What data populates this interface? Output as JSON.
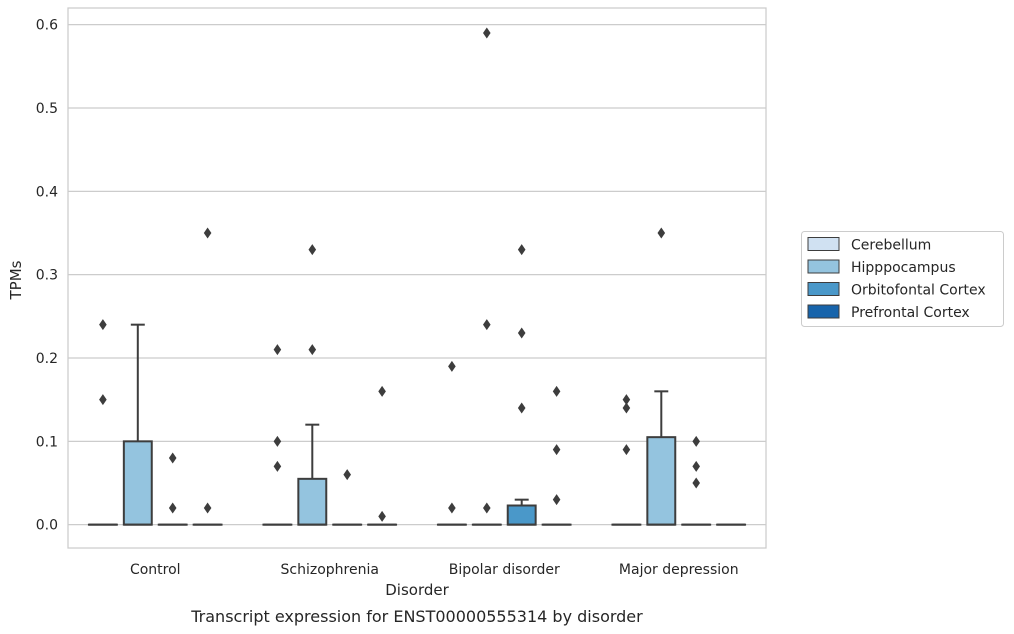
{
  "caption": "Transcript expression for ENST00000555314 by disorder",
  "chart_data": {
    "type": "box",
    "xlabel": "Disorder",
    "ylabel": "TPMs",
    "ylim": [
      -0.028,
      0.62
    ],
    "yticks": [
      0.0,
      0.1,
      0.2,
      0.3,
      0.4,
      0.5,
      0.6
    ],
    "ytick_labels": [
      "0.0",
      "0.1",
      "0.2",
      "0.3",
      "0.4",
      "0.5",
      "0.6"
    ],
    "grid": "horizontal",
    "legend_placement": "right",
    "categories": [
      "Control",
      "Schizophrenia",
      "Bipolar disorder",
      "Major depression"
    ],
    "series": [
      {
        "name": "Cerebellum",
        "color": "#d0e1f2",
        "boxes": [
          {
            "q1": 0,
            "median": 0,
            "q3": 0,
            "whisker_low": 0,
            "whisker_high": 0,
            "outliers": [
              0.24,
              0.15
            ]
          },
          {
            "q1": 0,
            "median": 0,
            "q3": 0,
            "whisker_low": 0,
            "whisker_high": 0,
            "outliers": [
              0.21,
              0.1,
              0.07
            ]
          },
          {
            "q1": 0,
            "median": 0,
            "q3": 0,
            "whisker_low": 0,
            "whisker_high": 0,
            "outliers": [
              0.19,
              0.02
            ]
          },
          {
            "q1": 0,
            "median": 0,
            "q3": 0,
            "whisker_low": 0,
            "whisker_high": 0,
            "outliers": [
              0.15,
              0.14,
              0.09
            ]
          }
        ]
      },
      {
        "name": "Hipppocampus",
        "color": "#94c4df",
        "boxes": [
          {
            "q1": 0,
            "median": 0,
            "q3": 0.1,
            "whisker_low": 0,
            "whisker_high": 0.24,
            "outliers": []
          },
          {
            "q1": 0,
            "median": 0,
            "q3": 0.055,
            "whisker_low": 0,
            "whisker_high": 0.12,
            "outliers": [
              0.33,
              0.21
            ]
          },
          {
            "q1": 0,
            "median": 0,
            "q3": 0,
            "whisker_low": 0,
            "whisker_high": 0,
            "outliers": [
              0.59,
              0.24,
              0.02
            ]
          },
          {
            "q1": 0,
            "median": 0,
            "q3": 0.105,
            "whisker_low": 0,
            "whisker_high": 0.16,
            "outliers": [
              0.35
            ]
          }
        ]
      },
      {
        "name": "Orbitofontal Cortex",
        "color": "#4a98c9",
        "boxes": [
          {
            "q1": 0,
            "median": 0,
            "q3": 0,
            "whisker_low": 0,
            "whisker_high": 0,
            "outliers": [
              0.08,
              0.02
            ]
          },
          {
            "q1": 0,
            "median": 0,
            "q3": 0,
            "whisker_low": 0,
            "whisker_high": 0,
            "outliers": [
              0.06
            ]
          },
          {
            "q1": 0,
            "median": 0,
            "q3": 0.023,
            "whisker_low": 0,
            "whisker_high": 0.03,
            "outliers": [
              0.33,
              0.23,
              0.14
            ]
          },
          {
            "q1": 0,
            "median": 0,
            "q3": 0,
            "whisker_low": 0,
            "whisker_high": 0,
            "outliers": [
              0.1,
              0.07,
              0.05
            ]
          }
        ]
      },
      {
        "name": "Prefrontal Cortex",
        "color": "#1764ab",
        "boxes": [
          {
            "q1": 0,
            "median": 0,
            "q3": 0,
            "whisker_low": 0,
            "whisker_high": 0,
            "outliers": [
              0.35,
              0.02
            ]
          },
          {
            "q1": 0,
            "median": 0,
            "q3": 0,
            "whisker_low": 0,
            "whisker_high": 0,
            "outliers": [
              0.16,
              0.01
            ]
          },
          {
            "q1": 0,
            "median": 0,
            "q3": 0,
            "whisker_low": 0,
            "whisker_high": 0,
            "outliers": [
              0.16,
              0.09,
              0.03
            ]
          },
          {
            "q1": 0,
            "median": 0,
            "q3": 0,
            "whisker_low": 0,
            "whisker_high": 0,
            "outliers": []
          }
        ]
      }
    ]
  }
}
